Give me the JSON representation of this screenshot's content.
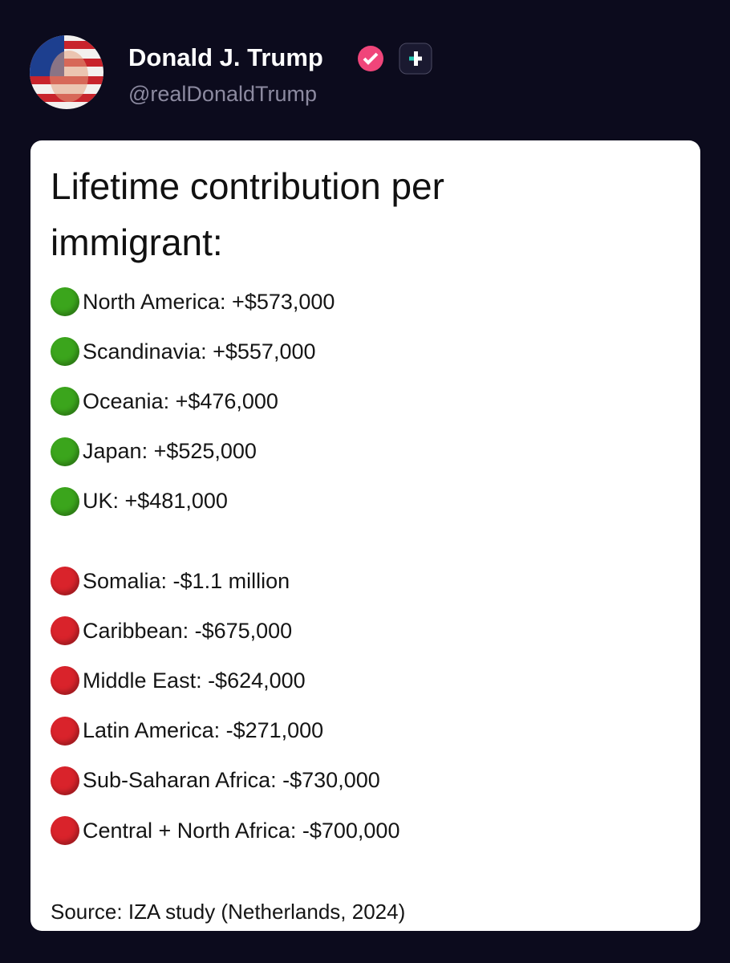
{
  "header": {
    "name": "Donald J. Trump",
    "handle": "@realDonaldTrump"
  },
  "card": {
    "title": "Lifetime contribution per immigrant:",
    "groups": [
      {
        "color": "#3ba51c",
        "items": [
          "North America: +$573,000",
          "Scandinavia: +$557,000",
          "Oceania: +$476,000",
          "Japan: +$525,000",
          "UK: +$481,000"
        ]
      },
      {
        "color": "#d9232b",
        "items": [
          "Somalia: -$1.1 million",
          "Caribbean: -$675,000",
          "Middle East: -$624,000",
          "Latin America: -$271,000",
          "Sub-Saharan Africa: -$730,000",
          "Central + North Africa: -$700,000"
        ]
      }
    ],
    "source": "Source: IZA study (Netherlands, 2024)"
  }
}
